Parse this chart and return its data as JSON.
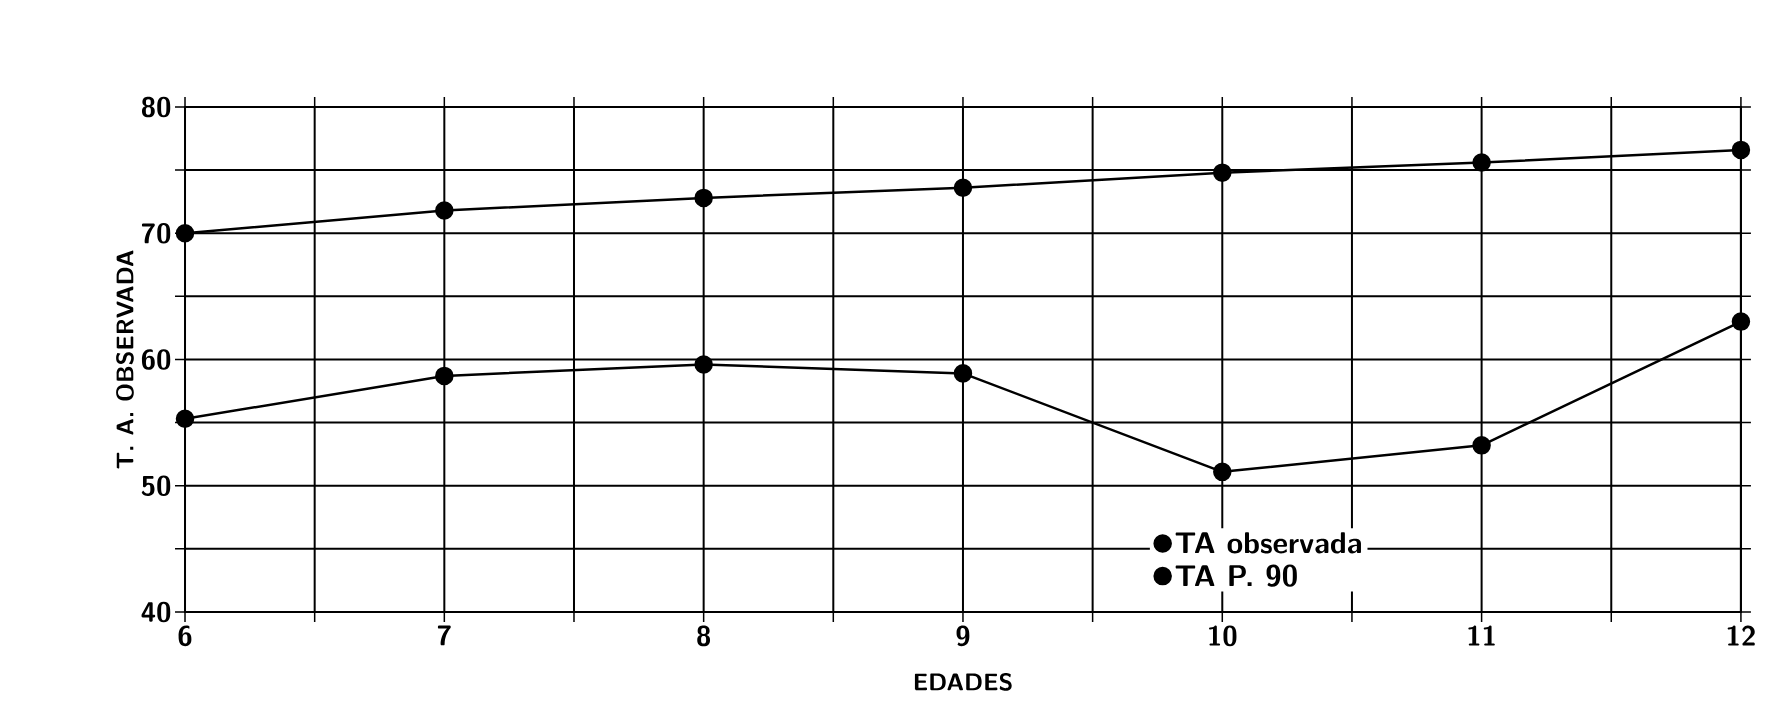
{
  "chart_data": {
    "type": "line",
    "xlabel": "EDADES",
    "ylabel": "T. A. OBSERVADA",
    "x": [
      6,
      7,
      8,
      9,
      10,
      11,
      12
    ],
    "series": [
      {
        "name": "TA observada",
        "color": "#000000",
        "values": [
          55.3,
          58.7,
          59.6,
          58.9,
          51.1,
          53.2,
          63.0
        ]
      },
      {
        "name": "TA P. 90",
        "color": "#000000",
        "values": [
          70.0,
          71.8,
          72.8,
          73.6,
          74.8,
          75.6,
          76.6
        ]
      }
    ],
    "xlim": [
      6,
      12
    ],
    "ylim": [
      40,
      80
    ],
    "xticks": [
      6,
      {
        "value": 6.5,
        "label": null
      },
      7,
      {
        "value": 7.5,
        "label": null
      },
      8,
      {
        "value": 8.5,
        "label": null
      },
      9,
      {
        "value": 9.5,
        "label": null
      },
      10,
      {
        "value": 10.5,
        "label": null
      },
      11,
      {
        "value": 11.5,
        "label": null
      },
      12
    ],
    "yticks": [
      40,
      {
        "value": 45,
        "label": null
      },
      50,
      {
        "value": 55,
        "label": null
      },
      60,
      {
        "value": 65,
        "label": null
      },
      70,
      {
        "value": 75,
        "label": null
      },
      80
    ],
    "grid": true,
    "legend": "bottom right",
    "marker": "circle",
    "line_style": "solid"
  }
}
